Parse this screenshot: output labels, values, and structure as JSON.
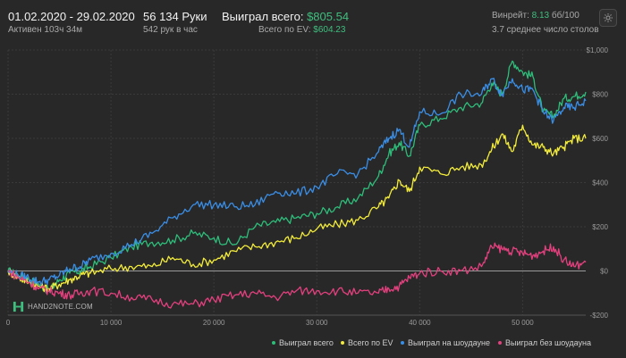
{
  "header": {
    "date_range": "01.02.2020 - 29.02.2020",
    "active": "Активен 103ч 34м",
    "hands": "56 134 Руки",
    "hands_per_hour": "542 рук в час",
    "won_label": "Выиграл всего: ",
    "won_value": "$805.54",
    "ev_label": "Всего по EV: ",
    "ev_value": "$604.23",
    "winrate_label": "Винрейт: ",
    "winrate_value": "8.13",
    "winrate_unit": " бб/100",
    "tables": "3.7 среднее число столов"
  },
  "logo": {
    "text": "HAND2NOTE.COM",
    "icon": "hand2note-logo-icon"
  },
  "settings_icon": "gear-icon",
  "colors": {
    "background": "#282828",
    "won": "#2ebd7a",
    "ev": "#f3ec3b",
    "showdown": "#3a8ee6",
    "non_showdown": "#e4407e",
    "accent_green": "#3fbf7f"
  },
  "chart_data": {
    "type": "line",
    "x_ticks": [
      0,
      10000,
      20000,
      30000,
      40000,
      50000
    ],
    "x_tick_labels": [
      "0",
      "10 000",
      "20 000",
      "30 000",
      "40 000",
      "50 000"
    ],
    "y_ticks": [
      -200,
      0,
      200,
      400,
      600,
      800,
      1000
    ],
    "y_tick_labels": [
      "-$200",
      "$0",
      "$200",
      "$400",
      "$600",
      "$800",
      "$1,000"
    ],
    "xlim": [
      0,
      56134
    ],
    "ylim": [
      -200,
      1000
    ],
    "grid": true,
    "legend_position": "bottom-right",
    "series": [
      {
        "name": "Выиграл всего",
        "x": [
          0,
          1000,
          2000,
          3000,
          4000,
          5000,
          6000,
          7000,
          8000,
          10000,
          12000,
          14000,
          16000,
          18000,
          20000,
          22000,
          24000,
          26000,
          28000,
          30000,
          32000,
          34000,
          36000,
          37000,
          38000,
          39000,
          40000,
          42000,
          44000,
          46000,
          47000,
          48000,
          49000,
          50000,
          51000,
          52000,
          53000,
          54000,
          55000,
          56134
        ],
        "y": [
          0,
          -20,
          -40,
          -60,
          -90,
          -40,
          -10,
          0,
          20,
          60,
          110,
          130,
          140,
          170,
          150,
          120,
          200,
          220,
          240,
          260,
          290,
          330,
          430,
          530,
          580,
          520,
          660,
          690,
          740,
          760,
          850,
          800,
          950,
          900,
          880,
          720,
          700,
          780,
          790,
          810
        ]
      },
      {
        "name": "Всего по EV",
        "x": [
          0,
          1000,
          2000,
          3000,
          4000,
          5000,
          6000,
          7000,
          8000,
          10000,
          12000,
          14000,
          16000,
          18000,
          20000,
          22000,
          24000,
          26000,
          28000,
          30000,
          32000,
          34000,
          36000,
          37000,
          38000,
          39000,
          40000,
          42000,
          44000,
          46000,
          47000,
          48000,
          49000,
          50000,
          51000,
          52000,
          53000,
          54000,
          55000,
          56134
        ],
        "y": [
          0,
          -30,
          -50,
          -70,
          -80,
          -60,
          -40,
          -20,
          -10,
          10,
          20,
          20,
          60,
          30,
          50,
          90,
          110,
          130,
          150,
          190,
          210,
          230,
          290,
          330,
          410,
          360,
          470,
          440,
          470,
          480,
          550,
          620,
          540,
          660,
          570,
          560,
          530,
          560,
          600,
          600
        ]
      },
      {
        "name": "Выиграл на шоудауне",
        "x": [
          0,
          1000,
          2000,
          3000,
          4000,
          5000,
          6000,
          7000,
          8000,
          10000,
          12000,
          14000,
          16000,
          18000,
          20000,
          22000,
          24000,
          26000,
          28000,
          30000,
          32000,
          34000,
          36000,
          37000,
          38000,
          39000,
          40000,
          42000,
          44000,
          46000,
          47000,
          48000,
          49000,
          50000,
          51000,
          52000,
          53000,
          54000,
          55000,
          56134
        ],
        "y": [
          0,
          -20,
          -30,
          -50,
          -40,
          -20,
          10,
          20,
          50,
          80,
          120,
          170,
          240,
          300,
          300,
          290,
          300,
          360,
          350,
          380,
          440,
          440,
          540,
          600,
          640,
          560,
          720,
          710,
          800,
          800,
          870,
          800,
          870,
          820,
          820,
          720,
          680,
          740,
          740,
          770
        ]
      },
      {
        "name": "Выиграл без шоудауна",
        "x": [
          0,
          1000,
          2000,
          3000,
          4000,
          5000,
          6000,
          7000,
          8000,
          10000,
          12000,
          14000,
          16000,
          18000,
          20000,
          22000,
          24000,
          26000,
          28000,
          30000,
          32000,
          34000,
          36000,
          37000,
          38000,
          39000,
          40000,
          42000,
          44000,
          46000,
          47000,
          48000,
          49000,
          50000,
          51000,
          52000,
          53000,
          54000,
          55000,
          56134
        ],
        "y": [
          0,
          -30,
          -50,
          -80,
          -90,
          -100,
          -110,
          -100,
          -90,
          -100,
          -120,
          -130,
          -150,
          -150,
          -130,
          -110,
          -100,
          -120,
          -90,
          -90,
          -90,
          -100,
          -100,
          -80,
          -70,
          -30,
          -10,
          0,
          0,
          20,
          110,
          100,
          90,
          80,
          70,
          90,
          110,
          50,
          20,
          40
        ]
      }
    ]
  },
  "legend": {
    "items": [
      "Выиграл всего",
      "Всего по EV",
      "Выиграл на шоудауне",
      "Выиграл без шоудауна"
    ]
  }
}
